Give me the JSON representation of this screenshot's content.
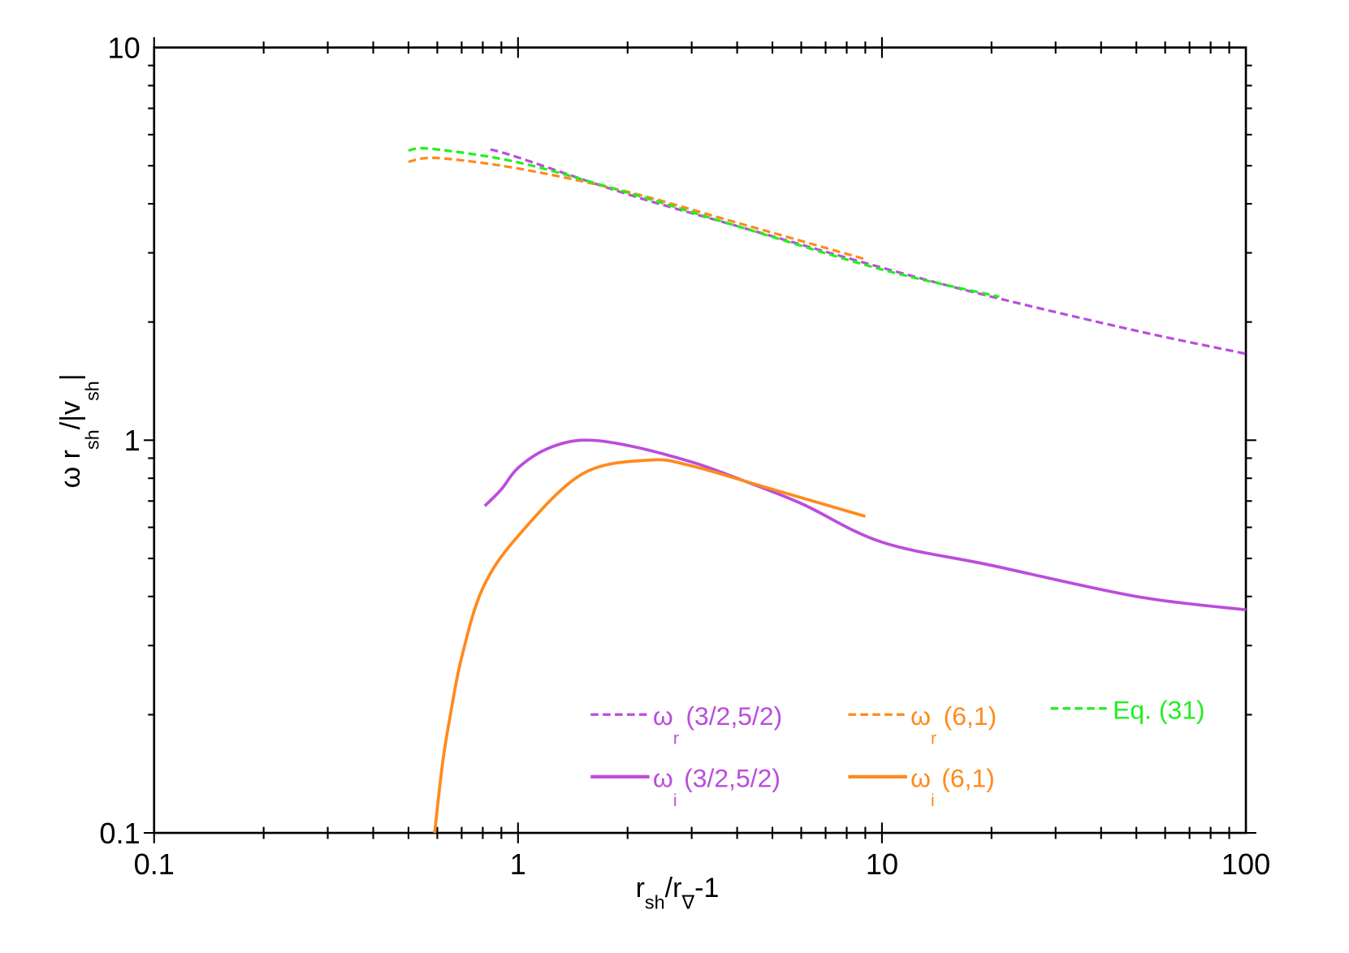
{
  "chart_data": {
    "type": "line",
    "title": "",
    "xlabel": {
      "parts": [
        "r",
        "sh",
        "/r",
        "∇",
        "-1"
      ]
    },
    "ylabel": {
      "parts": [
        "ω r",
        "sh",
        "/|v",
        "sh",
        "|"
      ]
    },
    "xscale": "log",
    "yscale": "log",
    "xlim": [
      0.1,
      100
    ],
    "ylim": [
      0.1,
      10
    ],
    "xticks": [
      "0.1",
      "1",
      "10",
      "100"
    ],
    "yticks": [
      "0.1",
      "1",
      "10"
    ],
    "grid": false,
    "legend_position": "bottom-right",
    "series": [
      {
        "name": "ω_r (3/2,5/2)",
        "symbol": "ω",
        "sub": "r",
        "args": "(3/2,5/2)",
        "color": "#bb4ddb",
        "dash": true,
        "x": [
          0.84,
          1,
          2,
          4,
          10,
          20,
          50,
          100
        ],
        "y": [
          5.5,
          5.25,
          4.23,
          3.51,
          2.75,
          2.32,
          1.9,
          1.66
        ]
      },
      {
        "name": "ω_r (6,1)",
        "symbol": "ω",
        "sub": "r",
        "args": "(6,1)",
        "color": "#ff8a1c",
        "dash": true,
        "x": [
          0.5,
          0.6,
          1,
          2,
          4,
          9
        ],
        "y": [
          5.12,
          5.23,
          4.92,
          4.29,
          3.58,
          2.89
        ]
      },
      {
        "name": "Eq. (31)",
        "symbol": "",
        "sub": "",
        "args": "Eq. (31)",
        "color": "#22ee22",
        "dash": true,
        "x": [
          0.5,
          0.58,
          1,
          2,
          4,
          10,
          21
        ],
        "y": [
          5.47,
          5.52,
          5.1,
          4.27,
          3.51,
          2.72,
          2.32
        ]
      },
      {
        "name": "ω_i (3/2,5/2)",
        "symbol": "ω",
        "sub": "i",
        "args": "(3/2,5/2)",
        "color": "#bb4ddb",
        "dash": false,
        "x": [
          0.81,
          0.9,
          1,
          1.2,
          1.5,
          2,
          3,
          4,
          6,
          10,
          20,
          50,
          100
        ],
        "y": [
          0.68,
          0.75,
          0.85,
          0.95,
          1.0,
          0.97,
          0.88,
          0.8,
          0.69,
          0.55,
          0.48,
          0.4,
          0.37
        ]
      },
      {
        "name": "ω_i (6,1)",
        "symbol": "ω",
        "sub": "i",
        "args": "(6,1)",
        "color": "#ff8a1c",
        "dash": false,
        "x": [
          0.59,
          0.62,
          0.65,
          0.7,
          0.8,
          1,
          1.5,
          2.3,
          3,
          5,
          9
        ],
        "y": [
          0.1,
          0.15,
          0.197,
          0.28,
          0.42,
          0.57,
          0.82,
          0.89,
          0.86,
          0.75,
          0.64
        ]
      }
    ]
  }
}
